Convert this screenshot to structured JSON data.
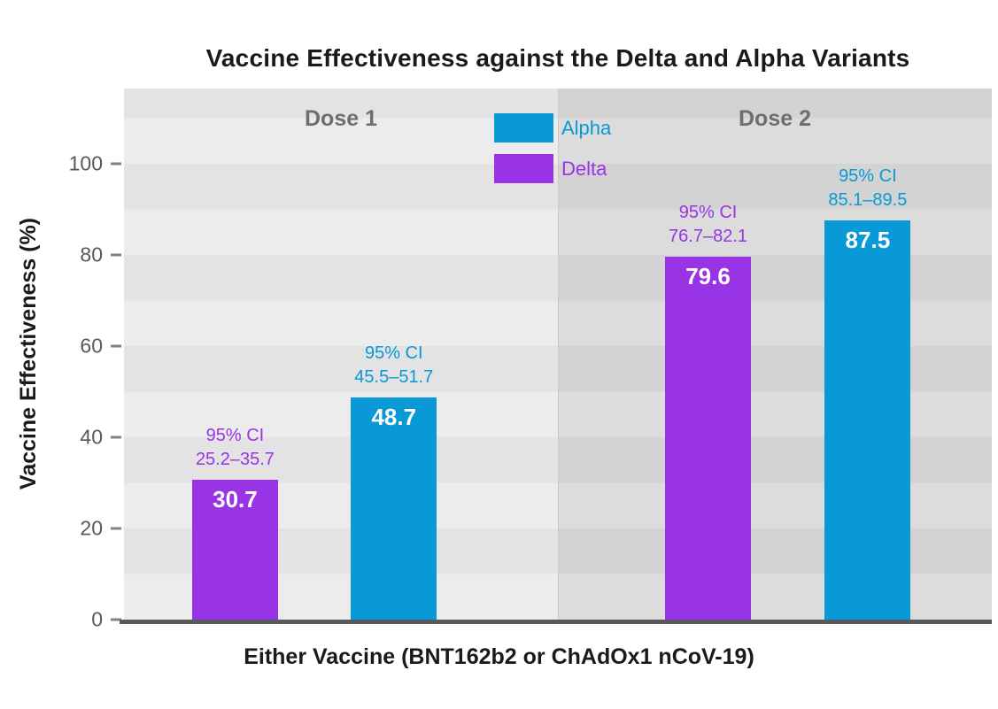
{
  "chart_data": {
    "type": "bar",
    "title": "Vaccine Effectiveness against the Delta and Alpha Variants",
    "xlabel": "Either Vaccine (BNT162b2 or ChAdOx1 nCoV-19)",
    "ylabel": "Vaccine Effectiveness (%)",
    "ylim": [
      0,
      100
    ],
    "yticks": [
      0,
      20,
      40,
      60,
      80,
      100
    ],
    "grid": false,
    "legend_position": "top-center",
    "ci_label": "95% CI",
    "series_colors": {
      "Alpha": "#0999d6",
      "Delta": "#9933e6"
    },
    "legend": [
      {
        "label": "Alpha",
        "color": "#0999d6"
      },
      {
        "label": "Delta",
        "color": "#9933e6"
      }
    ],
    "panels": [
      {
        "label": "Dose 1",
        "bars": [
          {
            "series": "Delta",
            "value": 30.7,
            "value_label": "30.7",
            "ci": "25.2–35.7"
          },
          {
            "series": "Alpha",
            "value": 48.7,
            "value_label": "48.7",
            "ci": "45.5–51.7"
          }
        ]
      },
      {
        "label": "Dose 2",
        "bars": [
          {
            "series": "Delta",
            "value": 79.6,
            "value_label": "79.6",
            "ci": "76.7–82.1"
          },
          {
            "series": "Alpha",
            "value": 87.5,
            "value_label": "87.5",
            "ci": "85.1–89.5"
          }
        ]
      }
    ]
  }
}
